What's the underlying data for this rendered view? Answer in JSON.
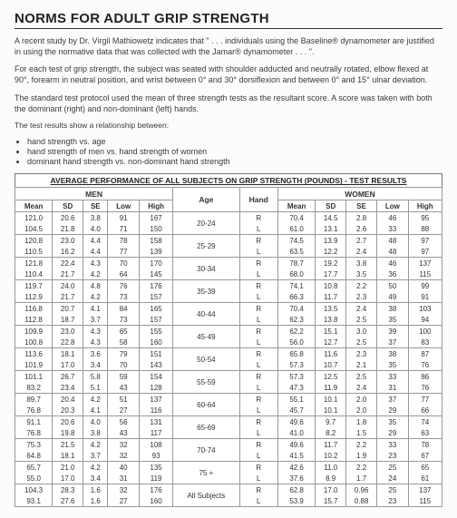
{
  "title": "NORMS FOR ADULT GRIP STRENGTH",
  "p1": "A recent study by Dr. Virgil Mathiowetz indicates that \" . . . individuals using the Baseline® dynamometer are justified in using the normative data that was collected with the Jamar® dynamometer . . . \".",
  "p2": "For each test of grip strength, the subject was seated with shoulder adducted and neutrally rotated, elbow flexed at 90°, forearm in neutral position, and wrist between 0° and 30° dorsiflexion and between 0° and 15° ulnar deviation.",
  "p3": "The standard test protocol used the mean of three strength tests as the resultant score. A score was taken with both the dominant (right) and non-dominant (left) hands.",
  "p4": "The test results show a relationship between:",
  "bullets": [
    "hand strength vs. age",
    "hand strength of men vs. hand strength of women",
    "dominant hand strength vs. non-dominant hand strength"
  ],
  "tcaption": "AVERAGE PERFORMANCE OF ALL SUBJECTS ON GRIP STRENGTH (POUNDS) - TEST RESULTS",
  "grpMen": "MEN",
  "grpWomen": "WOMEN",
  "cols": {
    "mean": "Mean",
    "sd": "SD",
    "se": "SE",
    "low": "Low",
    "high": "High",
    "age": "Age",
    "hand": "Hand"
  },
  "rows": [
    {
      "age": "20-24",
      "m": {
        "r": [
          "121.0",
          "20.6",
          "3.8",
          "91",
          "167"
        ],
        "l": [
          "104.5",
          "21.8",
          "4.0",
          "71",
          "150"
        ]
      },
      "w": {
        "r": [
          "70.4",
          "14.5",
          "2.8",
          "46",
          "95"
        ],
        "l": [
          "61.0",
          "13.1",
          "2.6",
          "33",
          "88"
        ]
      }
    },
    {
      "age": "25-29",
      "m": {
        "r": [
          "120.8",
          "23.0",
          "4.4",
          "78",
          "158"
        ],
        "l": [
          "110.5",
          "16.2",
          "4.4",
          "77",
          "139"
        ]
      },
      "w": {
        "r": [
          "74.5",
          "13.9",
          "2.7",
          "48",
          "97"
        ],
        "l": [
          "63.5",
          "12.2",
          "2.4",
          "48",
          "97"
        ]
      }
    },
    {
      "age": "30-34",
      "m": {
        "r": [
          "121.8",
          "22.4",
          "4.3",
          "70",
          "170"
        ],
        "l": [
          "110.4",
          "21.7",
          "4.2",
          "64",
          "145"
        ]
      },
      "w": {
        "r": [
          "78.7",
          "19.2",
          "3.8",
          "46",
          "137"
        ],
        "l": [
          "68.0",
          "17.7",
          "3.5",
          "36",
          "115"
        ]
      }
    },
    {
      "age": "35-39",
      "m": {
        "r": [
          "119.7",
          "24.0",
          "4.8",
          "76",
          "176"
        ],
        "l": [
          "112.9",
          "21.7",
          "4.2",
          "73",
          "157"
        ]
      },
      "w": {
        "r": [
          "74.1",
          "10.8",
          "2.2",
          "50",
          "99"
        ],
        "l": [
          "66.3",
          "11.7",
          "2.3",
          "49",
          "91"
        ]
      }
    },
    {
      "age": "40-44",
      "m": {
        "r": [
          "116.8",
          "20.7",
          "4.1",
          "84",
          "165"
        ],
        "l": [
          "112.8",
          "18.7",
          "3.7",
          "73",
          "157"
        ]
      },
      "w": {
        "r": [
          "70.4",
          "13.5",
          "2.4",
          "38",
          "103"
        ],
        "l": [
          "62.3",
          "13.8",
          "2.5",
          "35",
          "94"
        ]
      }
    },
    {
      "age": "45-49",
      "m": {
        "r": [
          "109.9",
          "23.0",
          "4.3",
          "65",
          "155"
        ],
        "l": [
          "100.8",
          "22.8",
          "4.3",
          "58",
          "160"
        ]
      },
      "w": {
        "r": [
          "62.2",
          "15.1",
          "3.0",
          "39",
          "100"
        ],
        "l": [
          "56.0",
          "12.7",
          "2.5",
          "37",
          "83"
        ]
      }
    },
    {
      "age": "50-54",
      "m": {
        "r": [
          "113.6",
          "18.1",
          "3.6",
          "79",
          "151"
        ],
        "l": [
          "101.9",
          "17.0",
          "3.4",
          "70",
          "143"
        ]
      },
      "w": {
        "r": [
          "65.8",
          "11.6",
          "2.3",
          "38",
          "87"
        ],
        "l": [
          "57.3",
          "10.7",
          "2.1",
          "35",
          "76"
        ]
      }
    },
    {
      "age": "55-59",
      "m": {
        "r": [
          "101.1",
          "26.7",
          "5.8",
          "59",
          "154"
        ],
        "l": [
          "83.2",
          "23.4",
          "5.1",
          "43",
          "128"
        ]
      },
      "w": {
        "r": [
          "57.3",
          "12.5",
          "2.5",
          "33",
          "86"
        ],
        "l": [
          "47.3",
          "11.9",
          "2.4",
          "31",
          "76"
        ]
      }
    },
    {
      "age": "60-64",
      "m": {
        "r": [
          "89.7",
          "20.4",
          "4.2",
          "51",
          "137"
        ],
        "l": [
          "76.8",
          "20.3",
          "4.1",
          "27",
          "116"
        ]
      },
      "w": {
        "r": [
          "55.1",
          "10.1",
          "2.0",
          "37",
          "77"
        ],
        "l": [
          "45.7",
          "10.1",
          "2.0",
          "29",
          "66"
        ]
      }
    },
    {
      "age": "65-69",
      "m": {
        "r": [
          "91.1",
          "20.6",
          "4.0",
          "56",
          "131"
        ],
        "l": [
          "76.8",
          "19.8",
          "3.8",
          "43",
          "117"
        ]
      },
      "w": {
        "r": [
          "49.6",
          "9.7",
          "1.8",
          "35",
          "74"
        ],
        "l": [
          "41.0",
          "8.2",
          "1.5",
          "29",
          "63"
        ]
      }
    },
    {
      "age": "70-74",
      "m": {
        "r": [
          "75.3",
          "21.5",
          "4.2",
          "32",
          "108"
        ],
        "l": [
          "64.8",
          "18.1",
          "3.7",
          "32",
          "93"
        ]
      },
      "w": {
        "r": [
          "49.6",
          "11.7",
          "2.2",
          "33",
          "78"
        ],
        "l": [
          "41.5",
          "10.2",
          "1.9",
          "23",
          "67"
        ]
      }
    },
    {
      "age": "75 +",
      "m": {
        "r": [
          "65.7",
          "21.0",
          "4.2",
          "40",
          "135"
        ],
        "l": [
          "55.0",
          "17.0",
          "3.4",
          "31",
          "119"
        ]
      },
      "w": {
        "r": [
          "42.6",
          "11.0",
          "2.2",
          "25",
          "65"
        ],
        "l": [
          "37.6",
          "8.9",
          "1.7",
          "24",
          "61"
        ]
      }
    },
    {
      "age": "All Subjects",
      "m": {
        "r": [
          "104.3",
          "28.3",
          "1.6",
          "32",
          "176"
        ],
        "l": [
          "93.1",
          "27.6",
          "1.6",
          "27",
          "160"
        ]
      },
      "w": {
        "r": [
          "62.8",
          "17.0",
          "0.96",
          "25",
          "137"
        ],
        "l": [
          "53.9",
          "15.7",
          "0.88",
          "23",
          "115"
        ]
      }
    }
  ]
}
